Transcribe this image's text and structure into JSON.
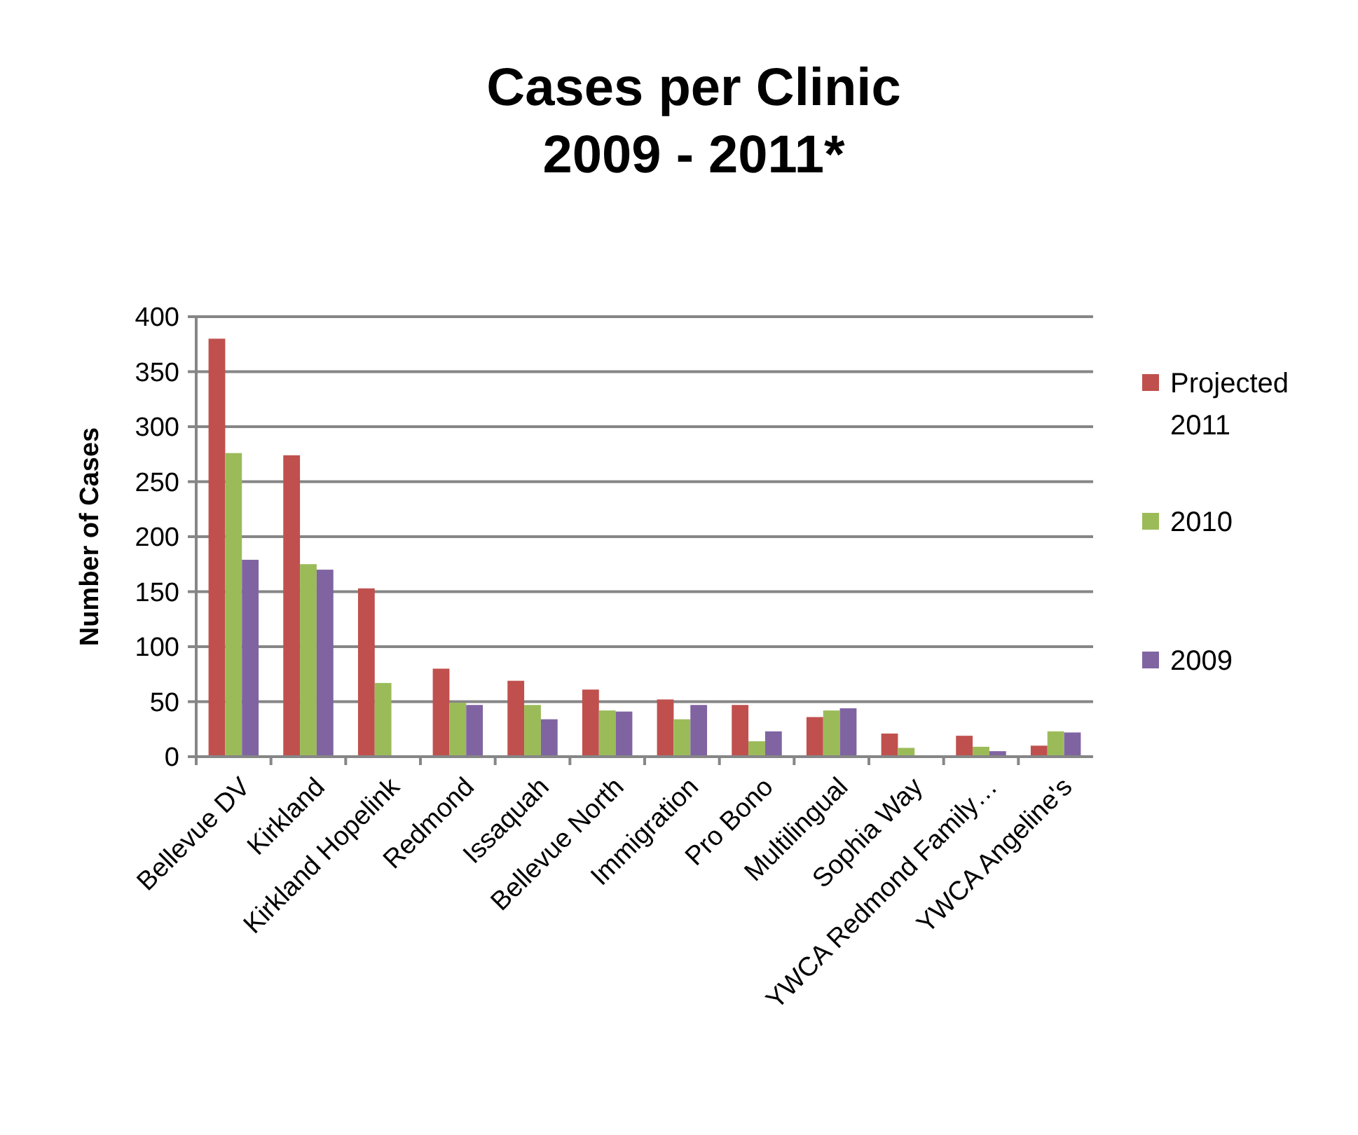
{
  "chart_data": {
    "type": "bar",
    "title": "Cases per Clinic\n2009 - 2011*",
    "ylabel": "Number of Cases",
    "categories": [
      "Bellevue DV",
      "Kirkland",
      "Kirkland Hopelink",
      "Redmond",
      "Issaquah",
      "Bellevue North",
      "Immigration",
      "Pro Bono",
      "Multilingual",
      "Sophia Way",
      "YWCA Redmond Family…",
      "YWCA Angeline's"
    ],
    "series": [
      {
        "name": "Projected 2011",
        "color": "#c0504d",
        "values": [
          380,
          274,
          153,
          80,
          69,
          61,
          52,
          47,
          36,
          21,
          19,
          10
        ]
      },
      {
        "name": "2010",
        "color": "#9bbb59",
        "values": [
          276,
          175,
          67,
          49,
          47,
          42,
          34,
          14,
          42,
          8,
          9,
          23
        ]
      },
      {
        "name": "2009",
        "color": "#8064a2",
        "values": [
          179,
          170,
          null,
          47,
          34,
          41,
          47,
          23,
          44,
          null,
          5,
          22
        ]
      }
    ],
    "ylim": [
      0,
      400
    ],
    "yticks": [
      0,
      50,
      100,
      150,
      200,
      250,
      300,
      350,
      400
    ],
    "grid": "y",
    "legend": "right"
  }
}
